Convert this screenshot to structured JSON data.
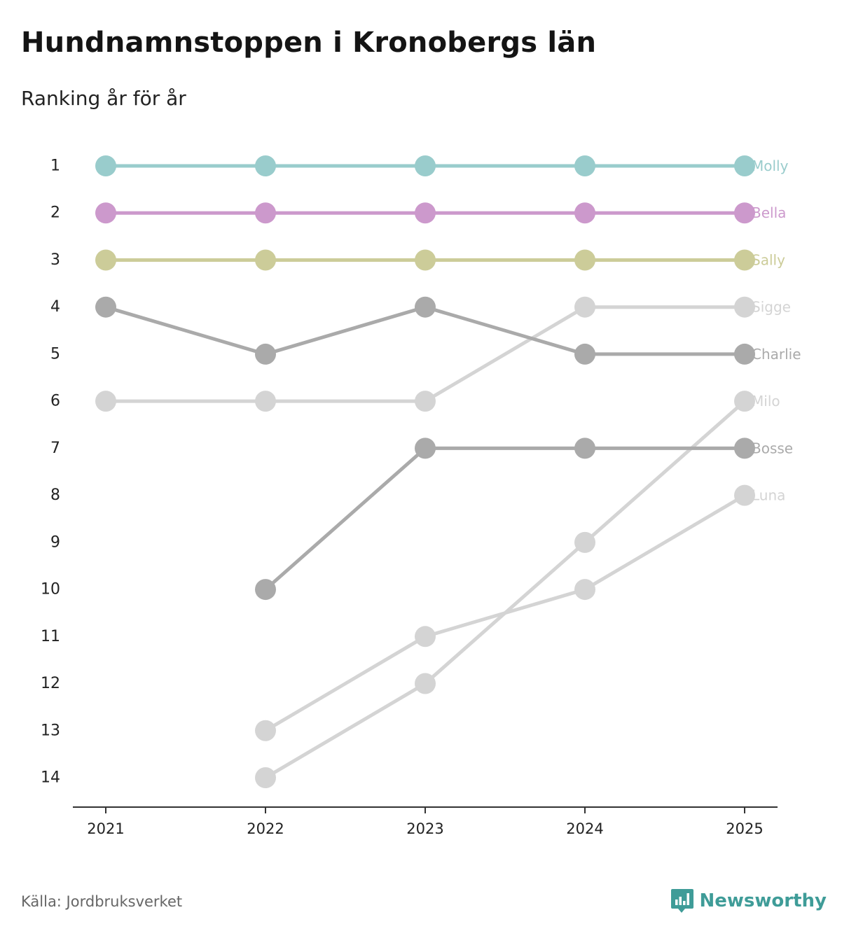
{
  "title": "Hundnamnstoppen i Kronobergs län",
  "subtitle": "Ranking år för år",
  "source": "Källa: Jordbruksverket",
  "brand": {
    "name": "Newsworthy",
    "icon": "newsworthy-logo-icon",
    "color": "#3f9c98"
  },
  "chart_data": {
    "type": "line",
    "title": "Hundnamnstoppen i Kronobergs län",
    "subtitle": "Ranking år för år",
    "xlabel": "",
    "ylabel": "",
    "x": [
      "2021",
      "2022",
      "2023",
      "2024",
      "2025"
    ],
    "y_ticks": [
      "1",
      "2",
      "3",
      "4",
      "5",
      "6",
      "7",
      "8",
      "9",
      "10",
      "11",
      "12",
      "13",
      "14"
    ],
    "ylim": [
      1,
      14
    ],
    "y_inverted": true,
    "grid": false,
    "legend": "end-labels",
    "series": [
      {
        "name": "Molly",
        "color": "#99cccc",
        "values": [
          1,
          1,
          1,
          1,
          1
        ]
      },
      {
        "name": "Bella",
        "color": "#cc99cc",
        "values": [
          2,
          2,
          2,
          2,
          2
        ]
      },
      {
        "name": "Sally",
        "color": "#cccc99",
        "values": [
          3,
          3,
          3,
          3,
          3
        ]
      },
      {
        "name": "Sigge",
        "color": "#d4d4d4",
        "values": [
          6,
          6,
          6,
          4,
          4
        ]
      },
      {
        "name": "Charlie",
        "color": "#aaaaaa",
        "values": [
          4,
          5,
          4,
          5,
          5
        ]
      },
      {
        "name": "Milo",
        "color": "#d4d4d4",
        "values": [
          null,
          14,
          12,
          9,
          6
        ]
      },
      {
        "name": "Bosse",
        "color": "#aaaaaa",
        "values": [
          null,
          10,
          7,
          7,
          7
        ]
      },
      {
        "name": "Luna",
        "color": "#d4d4d4",
        "values": [
          null,
          13,
          11,
          10,
          8
        ]
      }
    ]
  }
}
